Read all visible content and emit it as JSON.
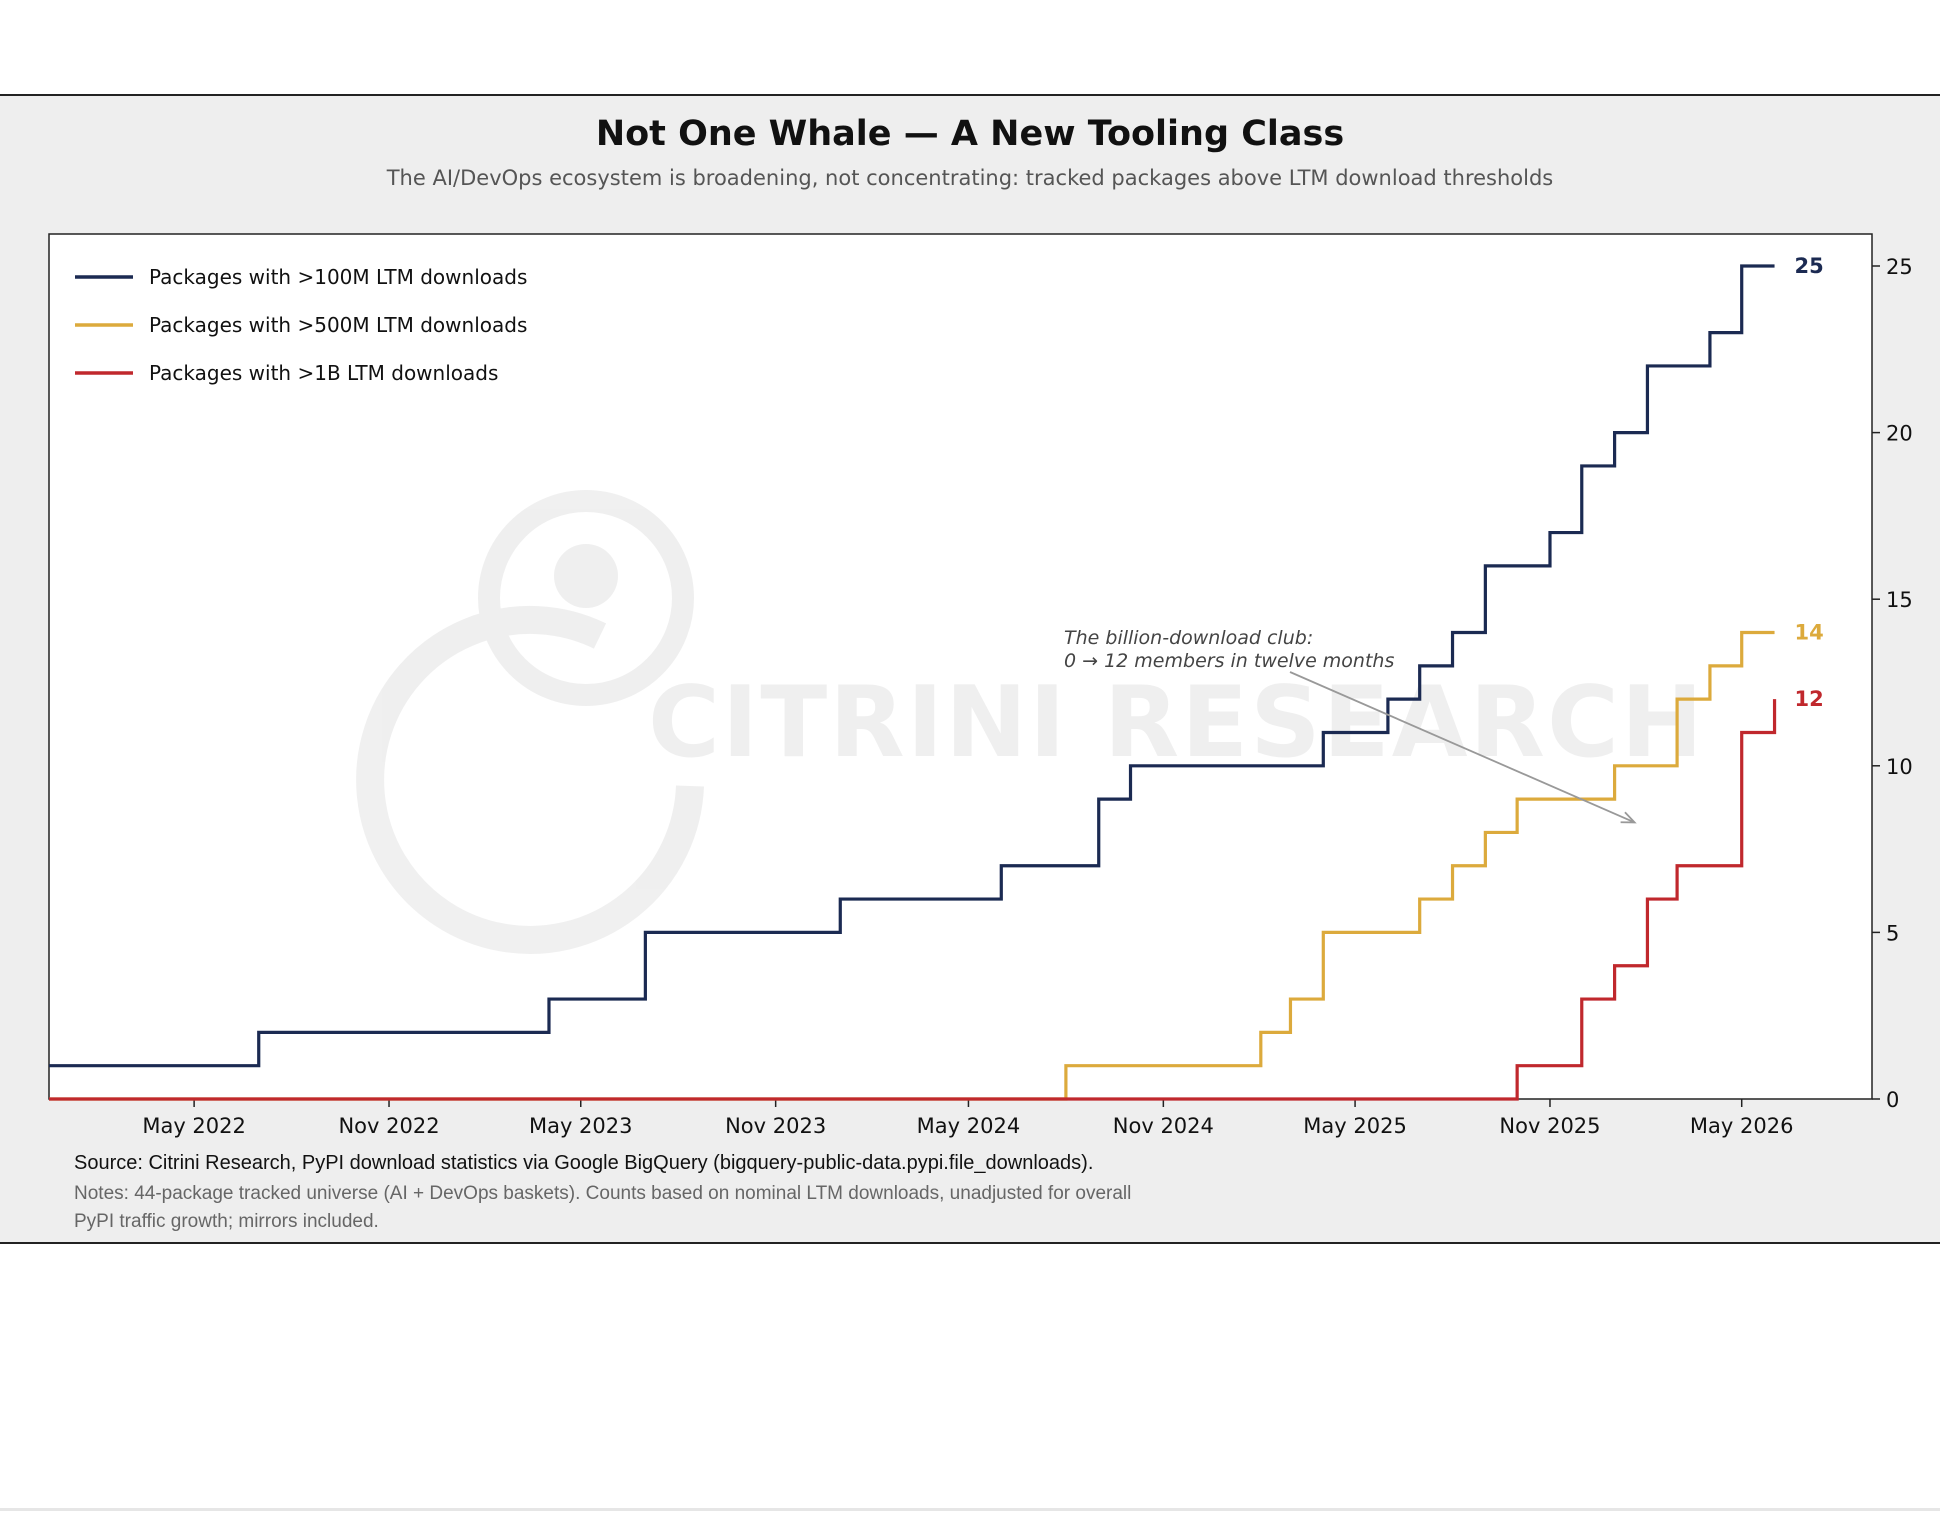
{
  "page": {
    "title": "Not One Whale — A New Tooling Class",
    "subtitle": "The AI/DevOps ecosystem is broadening, not concentrating: tracked packages above LTM download thresholds",
    "source": "Source: Citrini Research, PyPI download statistics via Google BigQuery (bigquery-public-data.pypi.file_downloads).",
    "notes": [
      "Notes: 44-package tracked universe (AI + DevOps baskets). Counts based on nominal LTM downloads, unadjusted for overall",
      "PyPI traffic growth; mirrors included."
    ],
    "watermark": "CITRINI RESEARCH"
  },
  "colors": {
    "navy": "#1b2a52",
    "gold": "#dcaa3c",
    "red": "#c0282d",
    "plot_bg": "#ffffff",
    "panel_bg": "#eeeeee",
    "arrow": "#999999"
  },
  "chart_data": {
    "type": "line",
    "step": "post",
    "x_range": [
      "2021-12-15",
      "2026-09-01"
    ],
    "ylim": [
      0,
      25
    ],
    "y_ticks": [
      0,
      5,
      10,
      15,
      20,
      25
    ],
    "y_axis_side": "right",
    "x_ticks": [
      {
        "date": "2022-05-01",
        "label": "May 2022"
      },
      {
        "date": "2022-11-01",
        "label": "Nov 2022"
      },
      {
        "date": "2023-05-01",
        "label": "May 2023"
      },
      {
        "date": "2023-11-01",
        "label": "Nov 2023"
      },
      {
        "date": "2024-05-01",
        "label": "May 2024"
      },
      {
        "date": "2024-11-01",
        "label": "Nov 2024"
      },
      {
        "date": "2025-05-01",
        "label": "May 2025"
      },
      {
        "date": "2025-11-01",
        "label": "Nov 2025"
      },
      {
        "date": "2026-05-01",
        "label": "May 2026"
      }
    ],
    "legend_position": "top-left",
    "grid": false,
    "series": [
      {
        "name": "Packages with >100M LTM downloads",
        "color": "navy",
        "end_label": "25",
        "points": [
          [
            "2021-12-15",
            1
          ],
          [
            "2022-07-01",
            2
          ],
          [
            "2023-04-01",
            3
          ],
          [
            "2023-07-01",
            5
          ],
          [
            "2024-01-01",
            6
          ],
          [
            "2024-06-01",
            7
          ],
          [
            "2024-09-01",
            9
          ],
          [
            "2024-10-01",
            10
          ],
          [
            "2025-04-01",
            11
          ],
          [
            "2025-06-01",
            12
          ],
          [
            "2025-07-01",
            13
          ],
          [
            "2025-08-01",
            14
          ],
          [
            "2025-09-01",
            16
          ],
          [
            "2025-11-01",
            17
          ],
          [
            "2025-12-01",
            19
          ],
          [
            "2026-01-01",
            20
          ],
          [
            "2026-02-01",
            22
          ],
          [
            "2026-04-01",
            23
          ],
          [
            "2026-05-01",
            25
          ],
          [
            "2026-06-01",
            25
          ]
        ]
      },
      {
        "name": "Packages with >500M LTM downloads",
        "color": "gold",
        "end_label": "14",
        "points": [
          [
            "2021-12-15",
            0
          ],
          [
            "2024-08-01",
            1
          ],
          [
            "2025-02-01",
            2
          ],
          [
            "2025-03-01",
            3
          ],
          [
            "2025-04-01",
            5
          ],
          [
            "2025-07-01",
            6
          ],
          [
            "2025-08-01",
            7
          ],
          [
            "2025-09-01",
            8
          ],
          [
            "2025-10-01",
            9
          ],
          [
            "2026-01-01",
            10
          ],
          [
            "2026-03-01",
            12
          ],
          [
            "2026-04-01",
            13
          ],
          [
            "2026-05-01",
            14
          ],
          [
            "2026-06-01",
            14
          ]
        ]
      },
      {
        "name": "Packages with >1B LTM downloads",
        "color": "red",
        "end_label": "12",
        "points": [
          [
            "2021-12-15",
            0
          ],
          [
            "2025-10-01",
            1
          ],
          [
            "2025-12-01",
            3
          ],
          [
            "2026-01-01",
            4
          ],
          [
            "2026-02-01",
            6
          ],
          [
            "2026-03-01",
            7
          ],
          [
            "2026-05-01",
            11
          ],
          [
            "2026-06-01",
            12
          ]
        ]
      }
    ],
    "annotation": {
      "lines": [
        "The billion-download club:",
        "0 → 12 members in twelve months"
      ],
      "arrow_to": [
        "2026-01-01",
        8
      ]
    }
  }
}
